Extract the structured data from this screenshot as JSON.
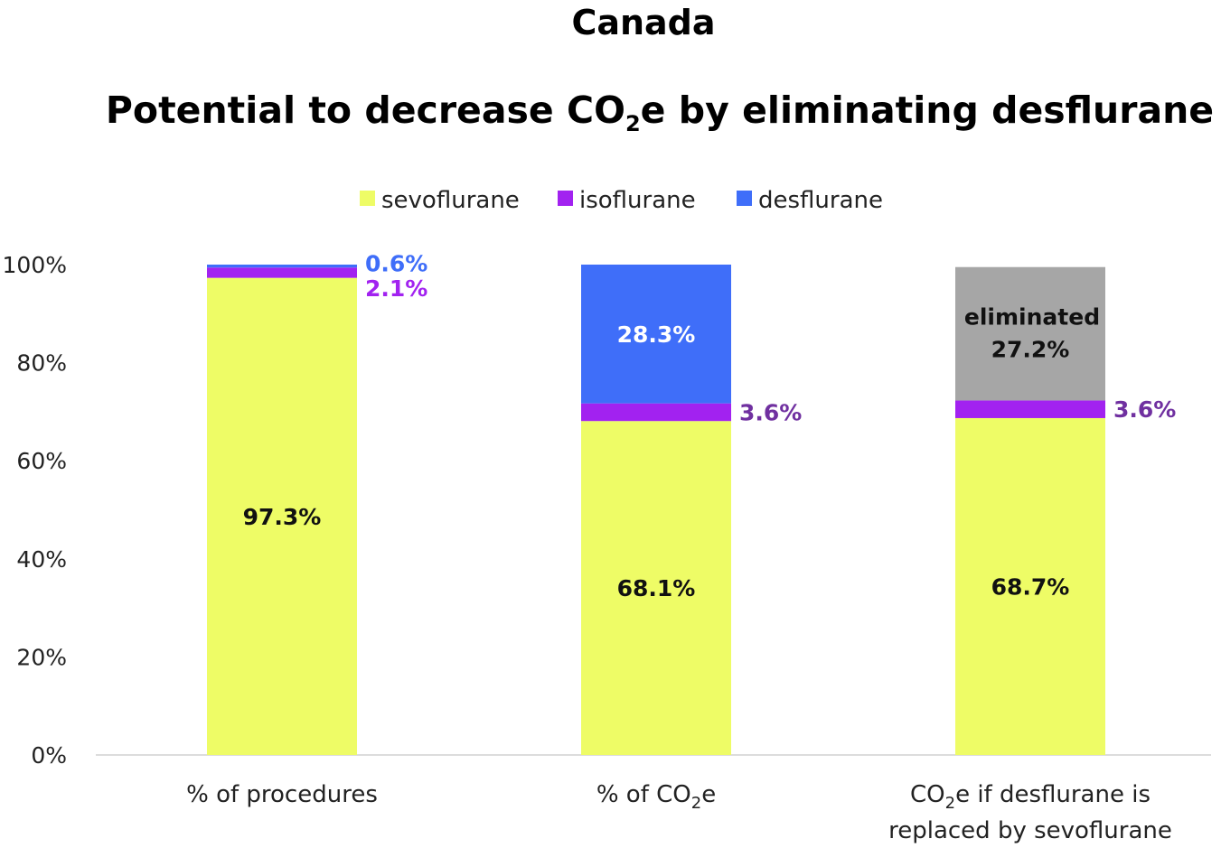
{
  "chart_data": {
    "type": "bar",
    "stacked": true,
    "title_line1": "Canada",
    "title_line2": {
      "pre": "Potential to decrease CO",
      "sub": "2",
      "post": "e by eliminating desflurane"
    },
    "categories": [
      {
        "pre": "% of procedures",
        "sub": "",
        "post": "",
        "line2": ""
      },
      {
        "pre": "% of CO",
        "sub": "2",
        "post": "e",
        "line2": ""
      },
      {
        "pre": "CO",
        "sub": "2",
        "post": "e if desflurane is",
        "line2": "replaced by sevoflurane"
      }
    ],
    "yaxis": {
      "ticks": [
        "0%",
        "20%",
        "40%",
        "60%",
        "80%",
        "100%"
      ],
      "ylim": [
        0,
        100
      ]
    },
    "legend": [
      "sevoflurane",
      "isoflurane",
      "desflurane"
    ],
    "legend_position": "top-center",
    "series": [
      {
        "name": "sevoflurane",
        "color": "#eefc66",
        "values": [
          97.3,
          68.1,
          68.7
        ]
      },
      {
        "name": "isoflurane",
        "color": "#a222f0",
        "values": [
          2.1,
          3.6,
          3.6
        ]
      },
      {
        "name": "desflurane",
        "color": "#3f6ef9",
        "values": [
          0.6,
          28.3,
          0
        ]
      },
      {
        "name": "eliminated",
        "color": "#a6a6a6",
        "values": [
          0,
          0,
          27.2
        ]
      }
    ],
    "data_labels": [
      {
        "text": "97.3%",
        "bar": 0,
        "series": 0,
        "style": "inside",
        "color": "#111111"
      },
      {
        "text": "2.1%",
        "bar": 0,
        "series": 1,
        "style": "right",
        "color": "#a222f0"
      },
      {
        "text": "0.6%",
        "bar": 0,
        "series": 2,
        "style": "right",
        "color": "#3f6ef9"
      },
      {
        "text": "68.1%",
        "bar": 1,
        "series": 0,
        "style": "inside",
        "color": "#111111"
      },
      {
        "text": "3.6%",
        "bar": 1,
        "series": 1,
        "style": "right",
        "color": "#7030a0"
      },
      {
        "text": "28.3%",
        "bar": 1,
        "series": 2,
        "style": "inside",
        "color": "#ffffff"
      },
      {
        "text": "68.7%",
        "bar": 2,
        "series": 0,
        "style": "inside",
        "color": "#111111"
      },
      {
        "text": "3.6%",
        "bar": 2,
        "series": 1,
        "style": "right",
        "color": "#7030a0"
      },
      {
        "text": "27.2%",
        "bar": 2,
        "series": 3,
        "style": "inside",
        "color": "#111111"
      }
    ],
    "annotation": {
      "text": "eliminated",
      "bar": 2,
      "series": 3
    }
  }
}
